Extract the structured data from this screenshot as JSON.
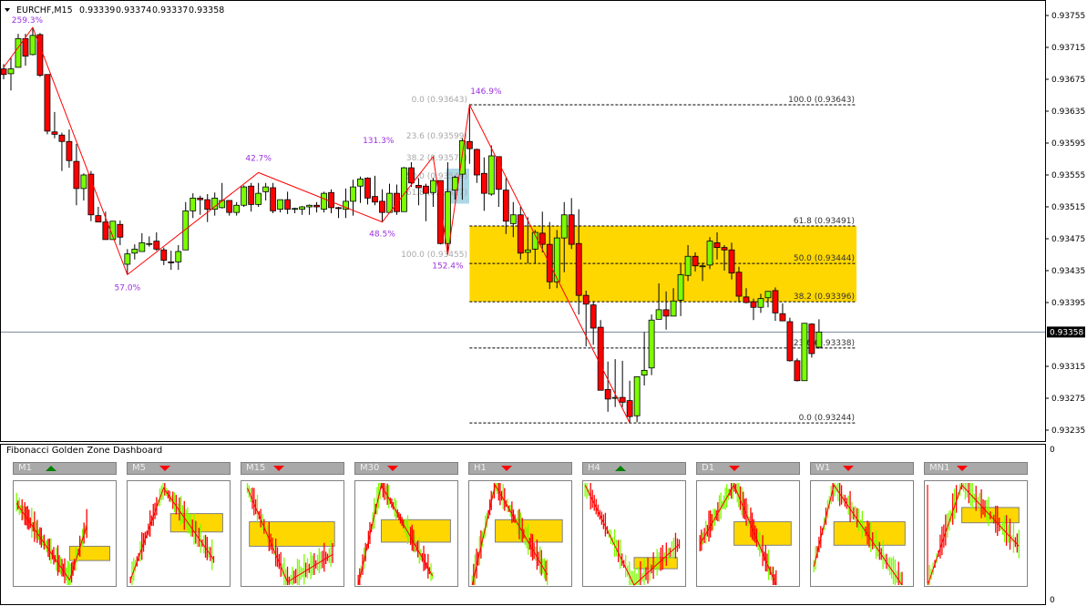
{
  "header": {
    "symbol": "EURCHF,M15",
    "open": "0.93339",
    "high": "0.93374",
    "low": "0.93337",
    "close": "0.93358"
  },
  "price_axis": {
    "ticks": [
      "0.93755",
      "0.93715",
      "0.93675",
      "0.93635",
      "0.93595",
      "0.93555",
      "0.93515",
      "0.93475",
      "0.93435",
      "0.93395",
      "0.93315",
      "0.93275",
      "0.93235"
    ],
    "current_price": "0.93358"
  },
  "indicator_axis": {
    "top": "0",
    "bottom": "0"
  },
  "colors": {
    "bull": "#7cfc00",
    "bear": "#ff0000",
    "zone": "#ffd700",
    "zigzag": "#ff0000",
    "percent_label": "#9b30e0",
    "small_zone": "#add8e6"
  },
  "chart_data": {
    "type": "candlestick",
    "ylim": [
      0.93221,
      0.93774
    ],
    "candle_fields": [
      "open",
      "high",
      "low",
      "close"
    ],
    "candles": [
      [
        0.93688,
        0.93694,
        0.93675,
        0.93681
      ],
      [
        0.93682,
        0.93702,
        0.93661,
        0.93688
      ],
      [
        0.9369,
        0.93732,
        0.9369,
        0.93726
      ],
      [
        0.93726,
        0.93732,
        0.93692,
        0.93704
      ],
      [
        0.93706,
        0.9374,
        0.93705,
        0.9373
      ],
      [
        0.93731,
        0.93733,
        0.93678,
        0.9368
      ],
      [
        0.93681,
        0.93681,
        0.93606,
        0.9361
      ],
      [
        0.93609,
        0.93634,
        0.93601,
        0.93606
      ],
      [
        0.93605,
        0.93608,
        0.9356,
        0.93597
      ],
      [
        0.93597,
        0.93612,
        0.93564,
        0.93573
      ],
      [
        0.93572,
        0.93594,
        0.93517,
        0.93538
      ],
      [
        0.93538,
        0.93557,
        0.93523,
        0.93555
      ],
      [
        0.93556,
        0.9356,
        0.93497,
        0.93505
      ],
      [
        0.93504,
        0.93515,
        0.93496,
        0.93496
      ],
      [
        0.93496,
        0.93509,
        0.93474,
        0.93474
      ],
      [
        0.93474,
        0.93497,
        0.93474,
        0.93497
      ],
      [
        0.93493,
        0.93498,
        0.93467,
        0.93477
      ],
      [
        0.93443,
        0.93462,
        0.9343,
        0.93456
      ],
      [
        0.93457,
        0.93468,
        0.93449,
        0.93462
      ],
      [
        0.93459,
        0.93482,
        0.93459,
        0.9347
      ],
      [
        0.93468,
        0.93478,
        0.93465,
        0.93469
      ],
      [
        0.93472,
        0.93483,
        0.9346,
        0.93462
      ],
      [
        0.93461,
        0.93464,
        0.93442,
        0.93448
      ],
      [
        0.93446,
        0.9346,
        0.93436,
        0.93445
      ],
      [
        0.93446,
        0.93467,
        0.93436,
        0.93459
      ],
      [
        0.93461,
        0.93521,
        0.93461,
        0.9351
      ],
      [
        0.9351,
        0.93532,
        0.93501,
        0.93526
      ],
      [
        0.93526,
        0.93529,
        0.93505,
        0.93524
      ],
      [
        0.93524,
        0.93531,
        0.93496,
        0.93512
      ],
      [
        0.93512,
        0.93533,
        0.93504,
        0.93526
      ],
      [
        0.93514,
        0.93545,
        0.93513,
        0.93523
      ],
      [
        0.93523,
        0.93523,
        0.93504,
        0.93508
      ],
      [
        0.93508,
        0.93521,
        0.93504,
        0.93517
      ],
      [
        0.93517,
        0.93542,
        0.93515,
        0.9354
      ],
      [
        0.93541,
        0.93545,
        0.93509,
        0.93518
      ],
      [
        0.93518,
        0.93545,
        0.93515,
        0.93532
      ],
      [
        0.93534,
        0.93545,
        0.93523,
        0.9354
      ],
      [
        0.93539,
        0.93545,
        0.93507,
        0.9351
      ],
      [
        0.93512,
        0.93524,
        0.93508,
        0.93524
      ],
      [
        0.93524,
        0.93534,
        0.93506,
        0.93512
      ],
      [
        0.93512,
        0.93514,
        0.93507,
        0.93513
      ],
      [
        0.93512,
        0.93516,
        0.93505,
        0.93515
      ],
      [
        0.93515,
        0.93518,
        0.93505,
        0.93517
      ],
      [
        0.93517,
        0.93521,
        0.93508,
        0.93515
      ],
      [
        0.93512,
        0.93534,
        0.93508,
        0.93532
      ],
      [
        0.93533,
        0.93537,
        0.93507,
        0.93514
      ],
      [
        0.93514,
        0.93515,
        0.93501,
        0.93513
      ],
      [
        0.93512,
        0.93538,
        0.93501,
        0.93522
      ],
      [
        0.93522,
        0.93549,
        0.93504,
        0.9354
      ],
      [
        0.93541,
        0.93553,
        0.9352,
        0.9355
      ],
      [
        0.93551,
        0.93552,
        0.93518,
        0.93526
      ],
      [
        0.93528,
        0.93554,
        0.93517,
        0.93521
      ],
      [
        0.93522,
        0.93537,
        0.93496,
        0.93508
      ],
      [
        0.93508,
        0.93544,
        0.93508,
        0.93532
      ],
      [
        0.93532,
        0.93543,
        0.93505,
        0.93509
      ],
      [
        0.93509,
        0.93565,
        0.93509,
        0.93564
      ],
      [
        0.93564,
        0.93571,
        0.9354,
        0.93545
      ],
      [
        0.93542,
        0.93551,
        0.93517,
        0.93539
      ],
      [
        0.93541,
        0.93544,
        0.93497,
        0.93532
      ],
      [
        0.93533,
        0.93551,
        0.93515,
        0.93548
      ],
      [
        0.93548,
        0.93548,
        0.93468,
        0.93469
      ],
      [
        0.93469,
        0.93571,
        0.93455,
        0.93534
      ],
      [
        0.93536,
        0.93554,
        0.93524,
        0.93552
      ],
      [
        0.93556,
        0.93601,
        0.93524,
        0.93598
      ],
      [
        0.93597,
        0.93643,
        0.93569,
        0.93588
      ],
      [
        0.93587,
        0.93588,
        0.93545,
        0.93555
      ],
      [
        0.93557,
        0.93577,
        0.9351,
        0.93532
      ],
      [
        0.93531,
        0.93592,
        0.93529,
        0.93579
      ],
      [
        0.93578,
        0.93578,
        0.93515,
        0.93537
      ],
      [
        0.93536,
        0.93551,
        0.93481,
        0.93497
      ],
      [
        0.93494,
        0.93521,
        0.93477,
        0.93505
      ],
      [
        0.93505,
        0.93515,
        0.93449,
        0.93457
      ],
      [
        0.93458,
        0.93502,
        0.93444,
        0.93461
      ],
      [
        0.93462,
        0.93486,
        0.93444,
        0.93483
      ],
      [
        0.93482,
        0.93509,
        0.93458,
        0.93468
      ],
      [
        0.93468,
        0.93496,
        0.93412,
        0.93421
      ],
      [
        0.93421,
        0.93486,
        0.93413,
        0.93476
      ],
      [
        0.93476,
        0.93521,
        0.93433,
        0.93505
      ],
      [
        0.93505,
        0.93526,
        0.93462,
        0.93468
      ],
      [
        0.93469,
        0.93512,
        0.9338,
        0.93404
      ],
      [
        0.93404,
        0.9341,
        0.9334,
        0.93393
      ],
      [
        0.93392,
        0.93397,
        0.93342,
        0.93363
      ],
      [
        0.93364,
        0.93373,
        0.93285,
        0.93285
      ],
      [
        0.93286,
        0.93321,
        0.93258,
        0.93274
      ],
      [
        0.93275,
        0.93324,
        0.93264,
        0.93276
      ],
      [
        0.93276,
        0.93322,
        0.93264,
        0.9327
      ],
      [
        0.93272,
        0.93297,
        0.93244,
        0.93252
      ],
      [
        0.93253,
        0.93302,
        0.93245,
        0.93302
      ],
      [
        0.93304,
        0.93358,
        0.93291,
        0.9331
      ],
      [
        0.93313,
        0.9338,
        0.93304,
        0.93373
      ],
      [
        0.93374,
        0.93419,
        0.93374,
        0.93386
      ],
      [
        0.93386,
        0.93409,
        0.93361,
        0.93378
      ],
      [
        0.93378,
        0.93413,
        0.93378,
        0.93397
      ],
      [
        0.93398,
        0.93443,
        0.93378,
        0.9343
      ],
      [
        0.93429,
        0.93467,
        0.93422,
        0.93453
      ],
      [
        0.93453,
        0.93458,
        0.93434,
        0.93441
      ],
      [
        0.9344,
        0.93445,
        0.93422,
        0.93441
      ],
      [
        0.93442,
        0.93477,
        0.93437,
        0.93472
      ],
      [
        0.9347,
        0.93483,
        0.93449,
        0.93464
      ],
      [
        0.93464,
        0.93467,
        0.93435,
        0.93461
      ],
      [
        0.93461,
        0.9347,
        0.93424,
        0.93432
      ],
      [
        0.93433,
        0.9344,
        0.93395,
        0.93403
      ],
      [
        0.93402,
        0.93413,
        0.93394,
        0.93395
      ],
      [
        0.93396,
        0.934,
        0.93373,
        0.93389
      ],
      [
        0.93389,
        0.93406,
        0.93382,
        0.934
      ],
      [
        0.93401,
        0.93409,
        0.93389,
        0.93409
      ],
      [
        0.9341,
        0.93414,
        0.93372,
        0.93382
      ],
      [
        0.93381,
        0.93394,
        0.93372,
        0.93372
      ],
      [
        0.93371,
        0.93376,
        0.93321,
        0.93322
      ],
      [
        0.93322,
        0.93325,
        0.93296,
        0.93297
      ],
      [
        0.93297,
        0.93369,
        0.93297,
        0.93369
      ],
      [
        0.93368,
        0.93369,
        0.93326,
        0.93331
      ],
      [
        0.93339,
        0.93374,
        0.93337,
        0.93358
      ]
    ],
    "zigzag": [
      [
        0,
        0.9369
      ],
      [
        4,
        0.9374
      ],
      [
        17,
        0.9343
      ],
      [
        35,
        0.93558
      ],
      [
        52,
        0.93496
      ],
      [
        59,
        0.93578
      ],
      [
        61,
        0.93455
      ],
      [
        64,
        0.93643
      ],
      [
        86,
        0.93244
      ]
    ],
    "zigzag_labels": [
      {
        "index": 4,
        "price": 0.9374,
        "text": "259.3%"
      },
      {
        "index": 17,
        "price": 0.9343,
        "text": "57.0%"
      },
      {
        "index": 35,
        "price": 0.93558,
        "text": "42.7%"
      },
      {
        "index": 52,
        "price": 0.93496,
        "text": "48.5%"
      },
      {
        "index": 59,
        "price": 0.93578,
        "text": "131.3%"
      },
      {
        "index": 61,
        "price": 0.93455,
        "text": "152.4%"
      },
      {
        "index": 64,
        "price": 0.93643,
        "text": "146.9%"
      }
    ],
    "fib_main": {
      "zone": [
        0.93396,
        0.93491
      ],
      "levels": [
        {
          "price": 0.93643,
          "text": "100.0 (0.93643)"
        },
        {
          "price": 0.93491,
          "text": "61.8 (0.93491)"
        },
        {
          "price": 0.93444,
          "text": "50.0 (0.93444)"
        },
        {
          "price": 0.93396,
          "text": "38.2 (0.93396)"
        },
        {
          "price": 0.93338,
          "text": "23.6 (0.93338)"
        },
        {
          "price": 0.93244,
          "text": "0.0 (0.93244)"
        }
      ]
    },
    "fib_small": {
      "zone": [
        0.93527,
        0.93571
      ],
      "levels": [
        {
          "price": 0.93643,
          "text": "0.0 (0.93643)"
        },
        {
          "price": 0.93599,
          "text": "23.6 (0.93599)"
        },
        {
          "price": 0.93571,
          "text": "38.2 (0.93571)"
        },
        {
          "price": 0.93549,
          "text": "50.0 (0.93549)"
        },
        {
          "price": 0.93527,
          "text": "61.8 (0.93527)"
        },
        {
          "price": 0.93455,
          "text": "100.0 (0.93455)"
        }
      ]
    }
  },
  "dashboard": {
    "title": "Fibonacci Golden Zone Dashboard",
    "panels": [
      {
        "tf": "M1",
        "signal": "up"
      },
      {
        "tf": "M5",
        "signal": "down"
      },
      {
        "tf": "M15",
        "signal": "down"
      },
      {
        "tf": "M30",
        "signal": "down"
      },
      {
        "tf": "H1",
        "signal": "down"
      },
      {
        "tf": "H4",
        "signal": "up"
      },
      {
        "tf": "D1",
        "signal": "down"
      },
      {
        "tf": "W1",
        "signal": "down"
      },
      {
        "tf": "MN1",
        "signal": "down"
      }
    ]
  }
}
